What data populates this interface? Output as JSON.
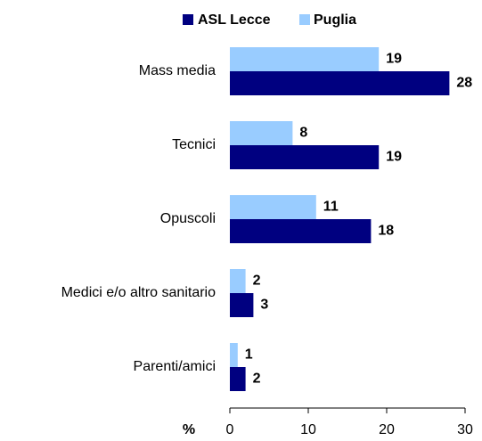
{
  "chart_data": {
    "type": "hbar",
    "categories": [
      "Mass media",
      "Tecnici",
      "Opuscoli",
      "Medici e/o altro sanitario",
      "Parenti/amici"
    ],
    "series": [
      {
        "name": "ASL Lecce",
        "color": "#000080",
        "values": [
          28,
          19,
          18,
          3,
          2
        ]
      },
      {
        "name": "Puglia",
        "color": "#99ccff",
        "values": [
          19,
          8,
          11,
          2,
          1
        ]
      }
    ],
    "xlabel": "%",
    "xlim": [
      0,
      30
    ],
    "xticks": [
      0,
      10,
      20,
      30
    ],
    "legend": "top"
  }
}
